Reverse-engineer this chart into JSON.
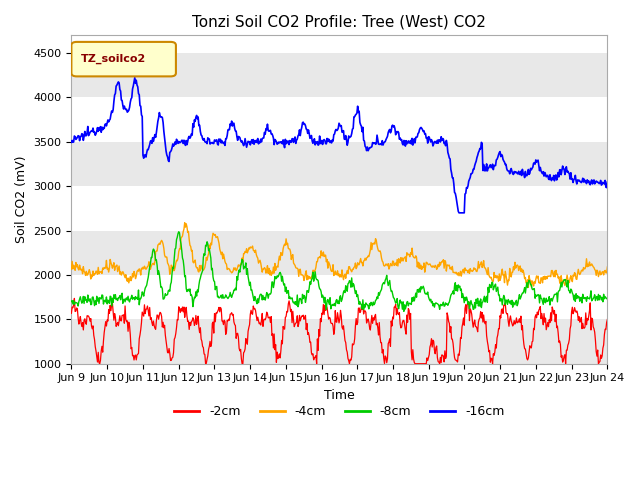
{
  "title": "Tonzi Soil CO2 Profile: Tree (West) CO2",
  "ylabel": "Soil CO2 (mV)",
  "xlabel": "Time",
  "legend_label": "TZ_soilco2",
  "ylim": [
    1000,
    4700
  ],
  "series_labels": [
    "-2cm",
    "-4cm",
    "-8cm",
    "-16cm"
  ],
  "series_colors": [
    "#ff0000",
    "#ffa500",
    "#00cc00",
    "#0000ff"
  ],
  "x_tick_labels": [
    "Jun 9",
    "Jun 10",
    "Jun 11",
    "Jun 12",
    "Jun 13",
    "Jun 14",
    "Jun 15",
    "Jun 16",
    "Jun 17",
    "Jun 18",
    "Jun 19",
    "Jun 20",
    "Jun 21",
    "Jun 22",
    "Jun 23",
    "Jun 24"
  ],
  "background_color": "#ffffff",
  "band_color": "#e8e8e8",
  "title_fontsize": 11,
  "axis_fontsize": 9,
  "tick_fontsize": 8
}
